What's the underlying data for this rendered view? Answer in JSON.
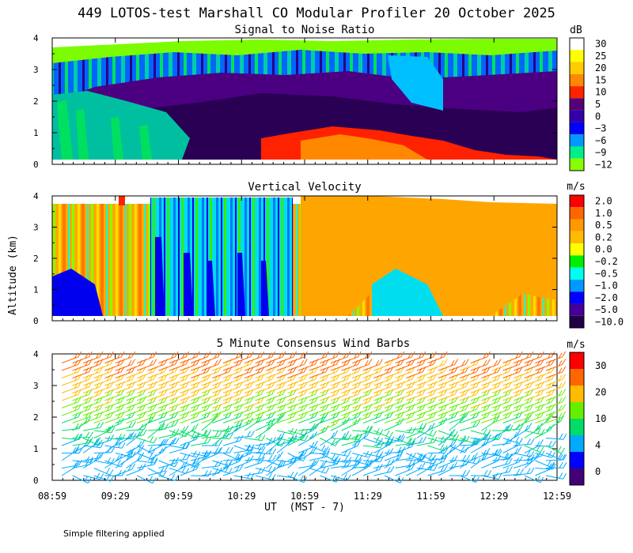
{
  "figure": {
    "title": "449 LOTOS-test Marshall CO Modular Profiler 20 October 2025",
    "ylabel": "Altitude (km)",
    "xlabel": "UT  (MST - 7)",
    "footnote": "Simple filtering applied",
    "x_ticks": [
      "08:59",
      "09:29",
      "09:59",
      "10:29",
      "10:59",
      "11:29",
      "11:59",
      "12:29",
      "12:59"
    ],
    "y_ticks": [
      "0",
      "1",
      "2",
      "3",
      "4"
    ]
  },
  "chart_data": [
    {
      "type": "heatmap",
      "title": "Signal to Noise Ratio",
      "units": "dB",
      "xlabel": "UT  (MST - 7)",
      "ylabel": "Altitude (km)",
      "x_range": [
        "08:59",
        "12:59"
      ],
      "ylim": [
        0,
        4
      ],
      "colorbar_labels": [
        "30",
        "25",
        "20",
        "15",
        "10",
        "5",
        "0",
        "−3",
        "−6",
        "−9",
        "−12"
      ],
      "colorbar_levels": [
        -12,
        -9,
        -6,
        -3,
        0,
        5,
        10,
        15,
        20,
        25,
        30
      ],
      "colors": [
        "#ffffff",
        "#ffff00",
        "#ffcc00",
        "#ff8800",
        "#ff2200",
        "#550077",
        "#3300aa",
        "#0000ff",
        "#0099ff",
        "#00ee88",
        "#88ff00"
      ]
    },
    {
      "type": "heatmap",
      "title": "Vertical Velocity",
      "units": "m/s",
      "xlabel": "UT  (MST - 7)",
      "ylabel": "Altitude (km)",
      "x_range": [
        "08:59",
        "12:59"
      ],
      "ylim": [
        0,
        4
      ],
      "colorbar_labels": [
        "2.0",
        "1.0",
        "0.5",
        "0.2",
        "0.0",
        "−0.2",
        "−0.5",
        "−1.0",
        "−2.0",
        "−5.0",
        "−10.0"
      ],
      "colorbar_levels": [
        -10.0,
        -5.0,
        -2.0,
        -1.0,
        -0.5,
        -0.2,
        0.0,
        0.2,
        0.5,
        1.0,
        2.0
      ],
      "colors": [
        "#ff0000",
        "#ff6600",
        "#ff9900",
        "#ffbb00",
        "#ffff00",
        "#00ee00",
        "#00ffee",
        "#0099ff",
        "#0000ff",
        "#440099",
        "#220044"
      ]
    },
    {
      "type": "scatter",
      "title": "5 Minute Consensus Wind Barbs",
      "units": "m/s",
      "xlabel": "UT  (MST - 7)",
      "ylabel": "Altitude (km)",
      "x_range": [
        "08:59",
        "12:59"
      ],
      "ylim": [
        0,
        4
      ],
      "colorbar_labels": [
        "30",
        "20",
        "10",
        "4",
        "0"
      ],
      "colorbar_levels": [
        0,
        4,
        10,
        20,
        30
      ],
      "colors": [
        "#ff0000",
        "#ff6600",
        "#ffbb00",
        "#66ee00",
        "#00dd66",
        "#00aaff",
        "#0000ff",
        "#440077"
      ]
    }
  ]
}
